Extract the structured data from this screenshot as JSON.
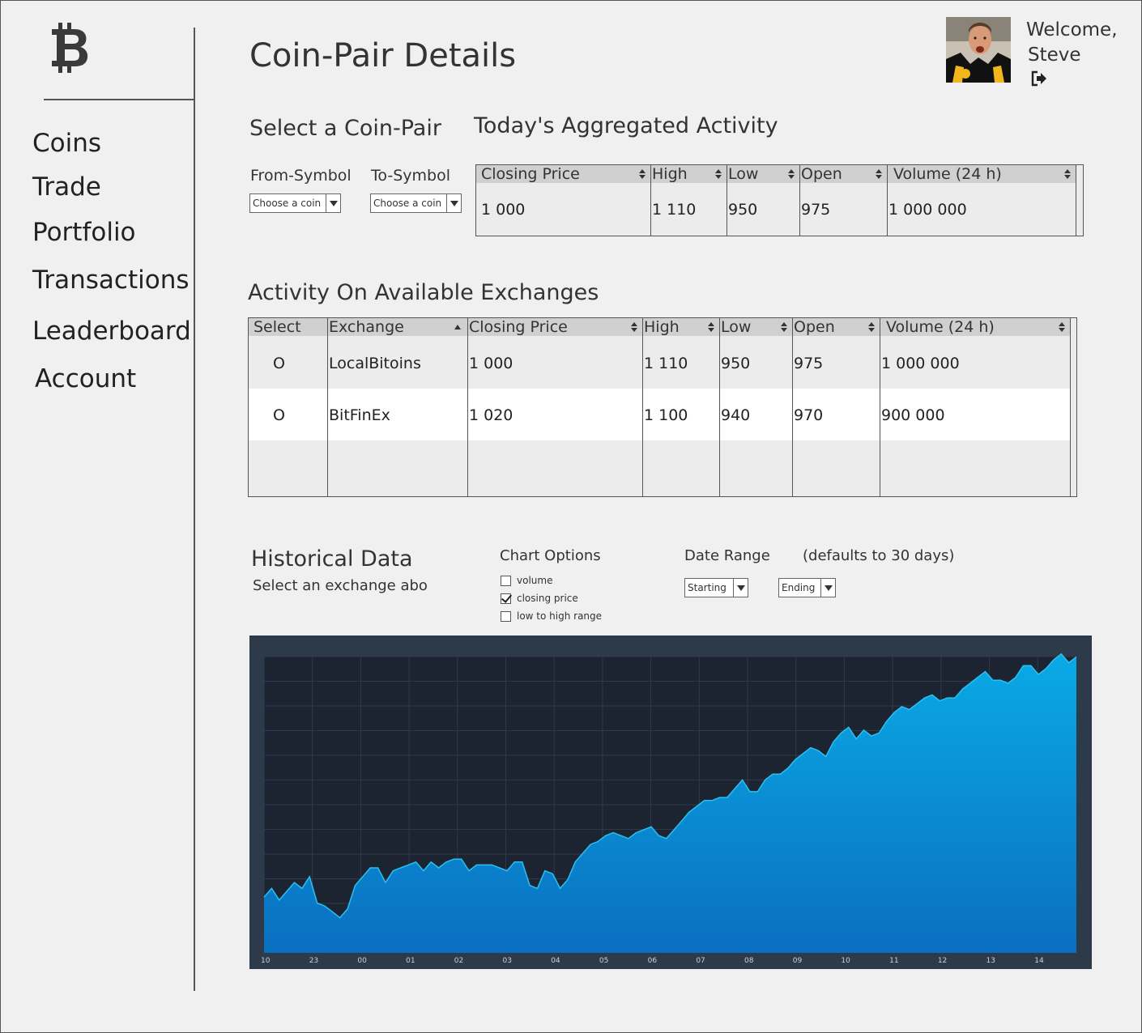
{
  "sidebar": {
    "logo_icon": "bitcoin-icon",
    "items": [
      {
        "label": "Coins"
      },
      {
        "label": "Trade"
      },
      {
        "label": "Portfolio"
      },
      {
        "label": "Transactions"
      },
      {
        "label": "Leaderboard"
      },
      {
        "label": "Account"
      }
    ]
  },
  "header": {
    "title": "Coin-Pair Details",
    "welcome": "Welcome,",
    "user_name": "Steve",
    "logout_icon": "sign-out-icon"
  },
  "pair_select": {
    "title": "Select a Coin-Pair",
    "from_label": "From-Symbol",
    "to_label": "To-Symbol",
    "from_value": "Choose a coin",
    "to_value": "Choose a coin"
  },
  "aggregate": {
    "title": "Today's Aggregated Activity",
    "columns": [
      "Closing Price",
      "High",
      "Low",
      "Open",
      "Volume (24 h)"
    ],
    "row": [
      "1 000",
      "1 110",
      "950",
      "975",
      "1 000 000"
    ]
  },
  "exchanges": {
    "title": "Activity On Available Exchanges",
    "columns": [
      "Select",
      "Exchange",
      "Closing Price",
      "High",
      "Low",
      "Open",
      "Volume (24 h)"
    ],
    "rows": [
      {
        "select": "O",
        "exchange": "LocalBitoins",
        "close": "1 000",
        "high": "1 110",
        "low": "950",
        "open": "975",
        "volume": "1 000 000"
      },
      {
        "select": "O",
        "exchange": "BitFinEx",
        "close": "1 020",
        "high": "1 100",
        "low": "940",
        "open": "970",
        "volume": "900 000"
      }
    ]
  },
  "historical": {
    "title": "Historical Data",
    "subtitle": "Select an exchange abo",
    "chart_options_label": "Chart Options",
    "options": [
      {
        "label": "volume",
        "checked": false
      },
      {
        "label": "closing price",
        "checked": true
      },
      {
        "label": "low to high range",
        "checked": false
      }
    ],
    "date_range_label": "Date Range",
    "date_range_note": "(defaults to 30 days)",
    "start_value": "Starting",
    "end_value": "Ending"
  },
  "chart_data": {
    "type": "area",
    "x_tick_labels": [
      "10",
      "23",
      "00",
      "01",
      "02",
      "03",
      "04",
      "05",
      "06",
      "07",
      "08",
      "09",
      "10",
      "11",
      "12",
      "13",
      "14"
    ],
    "ylim": [
      0,
      100
    ],
    "grid": true,
    "colors": {
      "background": "#1c2432",
      "frame": "#2c3a4a",
      "fill_top": "#0aaae6",
      "fill_bottom": "#0a6fc0",
      "grid": "#2e3a4c"
    },
    "series": [
      {
        "values": [
          19,
          22,
          18,
          21,
          24,
          22,
          26,
          17,
          16,
          14,
          12,
          15,
          23,
          26,
          29,
          29,
          24,
          28,
          29,
          30,
          31,
          28,
          31,
          29,
          31,
          32,
          32,
          28,
          30,
          30,
          30,
          29,
          28,
          31,
          31,
          23,
          22,
          28,
          27,
          22,
          25,
          31,
          34,
          37,
          38,
          40,
          41,
          40,
          39,
          41,
          42,
          43,
          40,
          39,
          42,
          45,
          48,
          50,
          52,
          52,
          53,
          53,
          56,
          59,
          55,
          55,
          59,
          61,
          61,
          63,
          66,
          68,
          70,
          69,
          67,
          72,
          75,
          77,
          73,
          76,
          74,
          75,
          79,
          82,
          84,
          83,
          85,
          87,
          88,
          86,
          87,
          87,
          90,
          92,
          94,
          96,
          93,
          93,
          92,
          94,
          98,
          98,
          95,
          97,
          100,
          102,
          99,
          101
        ]
      }
    ]
  }
}
